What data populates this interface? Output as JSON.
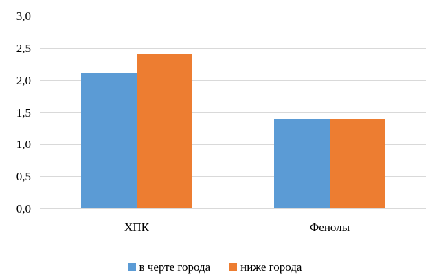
{
  "chart_data": {
    "type": "bar",
    "title": "",
    "xlabel": "",
    "ylabel": "",
    "categories": [
      "ХПК",
      "Фенолы"
    ],
    "series": [
      {
        "name": "в черте города",
        "color": "#5b9bd5",
        "values": [
          2.1,
          1.4
        ]
      },
      {
        "name": "ниже города",
        "color": "#ed7d31",
        "values": [
          2.4,
          1.4
        ]
      }
    ],
    "ylim": [
      0,
      3
    ],
    "ytick_step": 0.5,
    "ytick_labels": [
      "0,0",
      "0,5",
      "1,0",
      "1,5",
      "2,0",
      "2,5",
      "3,0"
    ],
    "grid": true,
    "gridline_color": "#d9d9d9",
    "legend_position": "bottom",
    "text_color": "#000000",
    "background_color": "#ffffff"
  }
}
